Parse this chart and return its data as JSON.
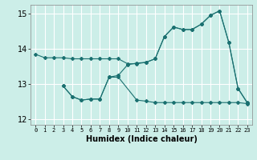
{
  "title": "",
  "xlabel": "Humidex (Indice chaleur)",
  "bg_color": "#cceee8",
  "grid_color": "#ffffff",
  "line_color": "#1a7070",
  "xlim": [
    -0.5,
    23.5
  ],
  "ylim": [
    11.85,
    15.25
  ],
  "xtick_labels": [
    "0",
    "1",
    "2",
    "3",
    "4",
    "5",
    "6",
    "7",
    "8",
    "9",
    "10",
    "11",
    "12",
    "13",
    "14",
    "15",
    "16",
    "17",
    "18",
    "19",
    "20",
    "21",
    "22",
    "23"
  ],
  "yticks": [
    12,
    13,
    14,
    15
  ],
  "line1_x": [
    0,
    1,
    2,
    3,
    4,
    5,
    6,
    7,
    8,
    9,
    10,
    11,
    12,
    13,
    14,
    15,
    16,
    17,
    18,
    19,
    20,
    21,
    22,
    23
  ],
  "line1_y": [
    13.85,
    13.75,
    13.75,
    13.75,
    13.72,
    13.72,
    13.72,
    13.72,
    13.72,
    13.72,
    13.58,
    13.58,
    13.62,
    13.72,
    14.35,
    14.62,
    14.55,
    14.55,
    14.7,
    14.95,
    15.08,
    14.18,
    12.88,
    12.48
  ],
  "line2_x": [
    3,
    4,
    5,
    6,
    7,
    8,
    9,
    10,
    11,
    12,
    13,
    14,
    15,
    16,
    17,
    18,
    19,
    20,
    21,
    22,
    23
  ],
  "line2_y": [
    12.95,
    12.65,
    12.55,
    12.58,
    12.58,
    13.2,
    13.25,
    13.55,
    13.6,
    13.62,
    13.72,
    14.35,
    14.62,
    14.55,
    14.55,
    14.7,
    14.95,
    15.08,
    14.18,
    12.88,
    12.47
  ],
  "line3_x": [
    3,
    4,
    5,
    6,
    7,
    8,
    9,
    11,
    12,
    13,
    14,
    15,
    16,
    17,
    18,
    19,
    20,
    21,
    22,
    23
  ],
  "line3_y": [
    12.95,
    12.65,
    12.55,
    12.58,
    12.58,
    13.2,
    13.2,
    12.55,
    12.52,
    12.48,
    12.48,
    12.48,
    12.48,
    12.48,
    12.48,
    12.48,
    12.48,
    12.48,
    12.48,
    12.45
  ]
}
